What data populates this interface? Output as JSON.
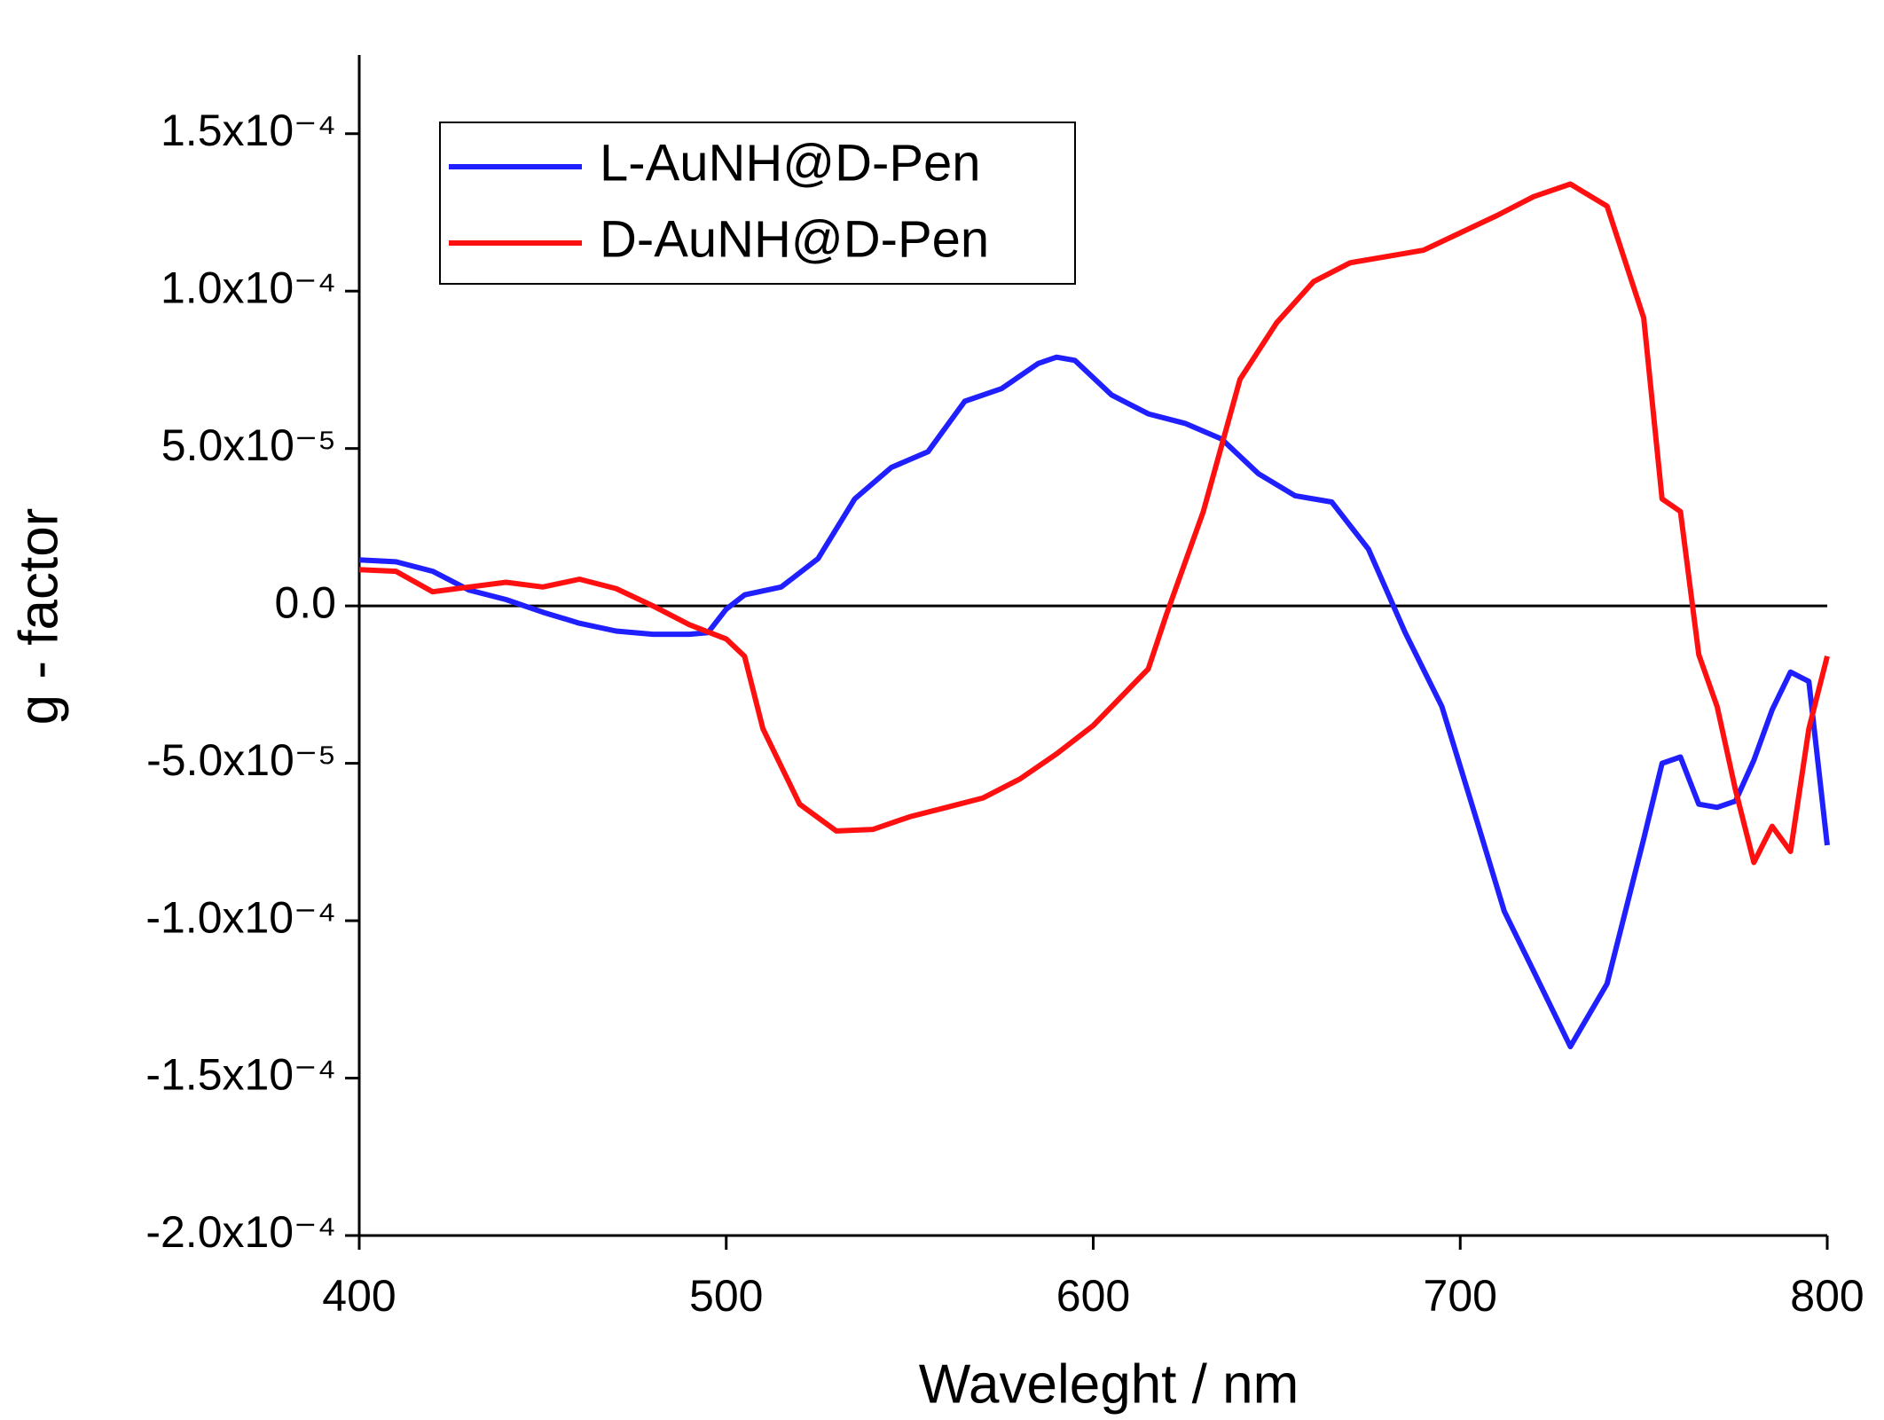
{
  "chart_data": {
    "type": "line",
    "xlabel": "Waveleght / nm",
    "ylabel": "g - factor",
    "xlim": [
      400,
      800
    ],
    "xticks": [
      400,
      500,
      600,
      700,
      800
    ],
    "ylim": [
      -0.0002,
      0.000175
    ],
    "yticks": [
      {
        "value": -0.0002,
        "label": "-2.0x10⁻⁴"
      },
      {
        "value": -0.00015,
        "label": "-1.5x10⁻⁴"
      },
      {
        "value": -0.0001,
        "label": "-1.0x10⁻⁴"
      },
      {
        "value": -5e-05,
        "label": "-5.0x10⁻⁵"
      },
      {
        "value": 0,
        "label": "0.0"
      },
      {
        "value": 5e-05,
        "label": "5.0x10⁻⁵"
      },
      {
        "value": 0.0001,
        "label": "1.0x10⁻⁴"
      },
      {
        "value": 0.00015,
        "label": "1.5x10⁻⁴"
      }
    ],
    "legend": "upper left",
    "series": [
      {
        "name": "L-AuNH@D-Pen",
        "color": "#1f1fff",
        "x": [
          400,
          410,
          420,
          430,
          440,
          450,
          460,
          470,
          480,
          490,
          495,
          500,
          505,
          515,
          525,
          535,
          545,
          555,
          565,
          575,
          585,
          590,
          595,
          605,
          615,
          625,
          635,
          645,
          655,
          665,
          675,
          685,
          695,
          705,
          712,
          720,
          730,
          740,
          750,
          755,
          760,
          765,
          770,
          775,
          780,
          785,
          790,
          795,
          800
        ],
        "values": [
          1.46e-05,
          1.4e-05,
          1.1e-05,
          5e-06,
          2e-06,
          -2e-06,
          -5.5e-06,
          -8e-06,
          -9e-06,
          -9e-06,
          -8.5e-06,
          -1e-06,
          3.5e-06,
          6e-06,
          1.5e-05,
          3.4e-05,
          4.4e-05,
          4.9e-05,
          6.5e-05,
          6.9e-05,
          7.7e-05,
          7.9e-05,
          7.8e-05,
          6.7e-05,
          6.1e-05,
          5.8e-05,
          5.3e-05,
          4.2e-05,
          3.5e-05,
          3.3e-05,
          1.8e-05,
          -8.5e-06,
          -3.2e-05,
          -7e-05,
          -9.7e-05,
          -0.000116,
          -0.00014,
          -0.00012,
          -7.4e-05,
          -5e-05,
          -4.8e-05,
          -6.3e-05,
          -6.4e-05,
          -6.2e-05,
          -4.9e-05,
          -3.3e-05,
          -2.1e-05,
          -2.4e-05,
          -7.6e-05
        ]
      },
      {
        "name": "D-AuNH@D-Pen",
        "color": "#ff1010",
        "x": [
          400,
          410,
          420,
          430,
          440,
          450,
          460,
          470,
          480,
          490,
          500,
          505,
          510,
          520,
          530,
          540,
          550,
          560,
          570,
          580,
          590,
          600,
          610,
          615,
          620,
          630,
          640,
          650,
          660,
          670,
          680,
          690,
          700,
          710,
          720,
          730,
          740,
          750,
          755,
          760,
          765,
          770,
          775,
          780,
          785,
          790,
          795,
          800
        ],
        "values": [
          1.15e-05,
          1.1e-05,
          4.5e-06,
          6e-06,
          7.5e-06,
          6e-06,
          8.5e-06,
          5.5e-06,
          0,
          -6e-06,
          -1.05e-05,
          -1.6e-05,
          -3.9e-05,
          -6.3e-05,
          -7.15e-05,
          -7.1e-05,
          -6.7e-05,
          -6.4e-05,
          -6.1e-05,
          -5.5e-05,
          -4.7e-05,
          -3.8e-05,
          -2.6e-05,
          -2e-05,
          -2.5e-06,
          3e-05,
          7.2e-05,
          9e-05,
          0.000103,
          0.000109,
          0.000111,
          0.000113,
          0.0001185,
          0.000124,
          0.00013,
          0.000134,
          0.000127,
          9.15e-05,
          3.4e-05,
          3e-05,
          -1.55e-05,
          -3.2e-05,
          -5.85e-05,
          -8.15e-05,
          -7e-05,
          -7.8e-05,
          -3.9e-05,
          -1.6e-05
        ]
      }
    ]
  }
}
